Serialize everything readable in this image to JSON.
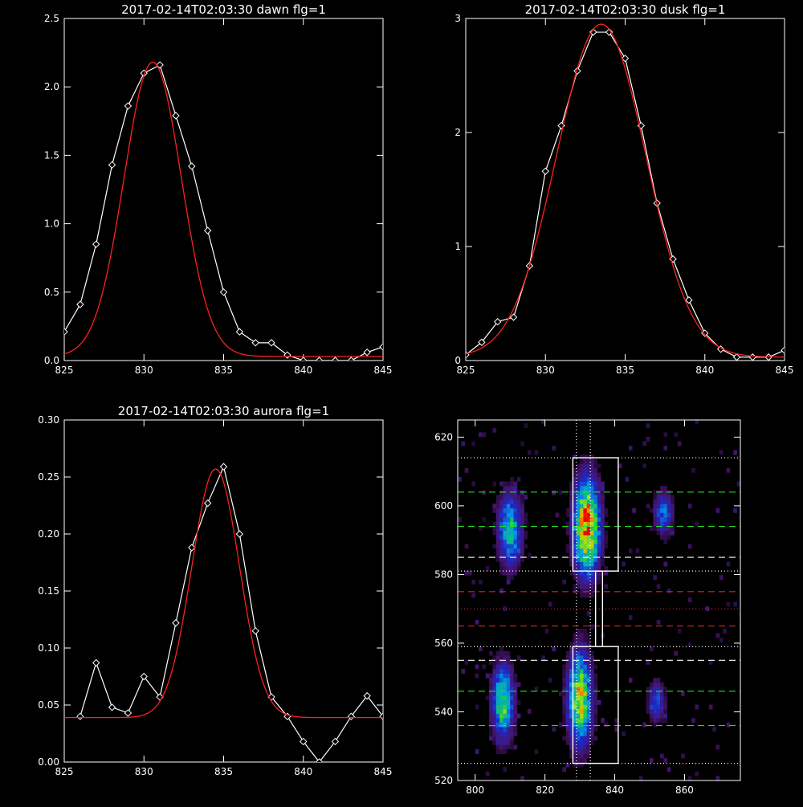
{
  "chart_data": [
    {
      "id": "dawn",
      "type": "line",
      "title": "2017-02-14T02:03:30 dawn flg=1",
      "xlim": [
        825,
        845
      ],
      "ylim": [
        0,
        2.5
      ],
      "xticks": [
        825,
        830,
        835,
        840,
        845
      ],
      "xtick_labels": [
        "825",
        "830",
        "835",
        "840",
        "845"
      ],
      "yticks": [
        0,
        0.5,
        1,
        1.5,
        2,
        2.5
      ],
      "ytick_labels": [
        "0.0",
        "0.5",
        "1.0",
        "1.5",
        "2.0",
        "2.5"
      ],
      "series": [
        {
          "kind": "data",
          "color": "#ffffff",
          "marker": "diamond",
          "x": [
            825,
            826,
            827,
            828,
            829,
            830,
            831,
            832,
            833,
            834,
            835,
            836,
            837,
            838,
            839,
            840,
            841,
            842,
            843,
            844,
            845
          ],
          "y": [
            0.21,
            0.41,
            0.85,
            1.43,
            1.86,
            2.1,
            2.16,
            1.79,
            1.42,
            0.95,
            0.5,
            0.21,
            0.13,
            0.13,
            0.04,
            0.0,
            0.0,
            0.0,
            0.0,
            0.06,
            0.1
          ]
        },
        {
          "kind": "fit",
          "color": "#ff2020",
          "shape": "gaussian",
          "amp": 2.15,
          "center": 830.55,
          "sigma": 1.8,
          "base": 0.03
        }
      ]
    },
    {
      "id": "dusk",
      "type": "line",
      "title": "2017-02-14T02:03:30 dusk flg=1",
      "xlim": [
        825,
        845
      ],
      "ylim": [
        0,
        3
      ],
      "xticks": [
        825,
        830,
        835,
        840,
        845
      ],
      "xtick_labels": [
        "825",
        "830",
        "835",
        "840",
        "845"
      ],
      "yticks": [
        0,
        1,
        2,
        3
      ],
      "ytick_labels": [
        "0",
        "1",
        "2",
        "3"
      ],
      "series": [
        {
          "kind": "data",
          "color": "#ffffff",
          "marker": "diamond",
          "x": [
            825,
            826,
            827,
            828,
            829,
            830,
            831,
            832,
            833,
            834,
            835,
            836,
            837,
            838,
            839,
            840,
            841,
            842,
            843,
            844,
            845
          ],
          "y": [
            0.05,
            0.16,
            0.34,
            0.38,
            0.83,
            1.66,
            2.06,
            2.54,
            2.88,
            2.88,
            2.65,
            2.06,
            1.38,
            0.89,
            0.53,
            0.24,
            0.1,
            0.03,
            0.03,
            0.03,
            0.09
          ]
        },
        {
          "kind": "fit",
          "color": "#ff2020",
          "shape": "gaussian",
          "amp": 2.92,
          "center": 833.5,
          "sigma": 2.8,
          "base": 0.03
        }
      ]
    },
    {
      "id": "aurora",
      "type": "line",
      "title": "2017-02-14T02:03:30 aurora flg=1",
      "xlim": [
        825,
        845
      ],
      "ylim": [
        0,
        0.3
      ],
      "xticks": [
        825,
        830,
        835,
        840,
        845
      ],
      "xtick_labels": [
        "825",
        "830",
        "835",
        "840",
        "845"
      ],
      "yticks": [
        0,
        0.05,
        0.1,
        0.15,
        0.2,
        0.25,
        0.3
      ],
      "ytick_labels": [
        "0.00",
        "0.05",
        "0.10",
        "0.15",
        "0.20",
        "0.25",
        "0.30"
      ],
      "series": [
        {
          "kind": "data",
          "color": "#ffffff",
          "marker": "diamond",
          "x": [
            826,
            827,
            828,
            829,
            830,
            831,
            832,
            833,
            834,
            835,
            836,
            837,
            838,
            839,
            840,
            841,
            842,
            843,
            844,
            845
          ],
          "y": [
            0.04,
            0.087,
            0.048,
            0.043,
            0.075,
            0.057,
            0.122,
            0.188,
            0.227,
            0.259,
            0.2,
            0.115,
            0.057,
            0.04,
            0.018,
            0.0,
            0.018,
            0.04,
            0.058,
            0.04
          ]
        },
        {
          "kind": "fit",
          "color": "#ff2020",
          "shape": "gaussian",
          "amp": 0.218,
          "center": 834.5,
          "sigma": 1.5,
          "base": 0.039
        }
      ]
    },
    {
      "id": "image",
      "type": "heatmap",
      "title": "",
      "xlim": [
        795,
        876
      ],
      "ylim": [
        520,
        625
      ],
      "xticks": [
        800,
        820,
        840,
        860
      ],
      "xtick_labels": [
        "800",
        "820",
        "840",
        "860"
      ],
      "yticks": [
        520,
        540,
        560,
        580,
        600,
        620
      ],
      "ytick_labels": [
        "520",
        "540",
        "560",
        "580",
        "600",
        "620"
      ],
      "colorscale": "rainbow",
      "blobs": [
        {
          "x": 810,
          "y": 593,
          "sx": 2.2,
          "sy": 7,
          "amp": 0.55
        },
        {
          "x": 832,
          "y": 594,
          "sx": 2.4,
          "sy": 9,
          "amp": 1.0
        },
        {
          "x": 854,
          "y": 598,
          "sx": 1.8,
          "sy": 4,
          "amp": 0.38
        },
        {
          "x": 808,
          "y": 543,
          "sx": 2.0,
          "sy": 7,
          "amp": 0.65
        },
        {
          "x": 830,
          "y": 544,
          "sx": 2.2,
          "sy": 9,
          "amp": 0.78
        },
        {
          "x": 852,
          "y": 543,
          "sx": 1.6,
          "sy": 4,
          "amp": 0.32
        }
      ],
      "vlines": [
        {
          "x": 829,
          "color": "#ffffff",
          "dash": "dotted"
        },
        {
          "x": 833,
          "color": "#ffffff",
          "dash": "dotted"
        }
      ],
      "hlines": [
        {
          "y": 614,
          "color": "#ffffff",
          "dash": "dotted"
        },
        {
          "y": 604,
          "color": "#22dd22",
          "dash": "dashed"
        },
        {
          "y": 594,
          "color": "#22dd22",
          "dash": "dashed"
        },
        {
          "y": 585,
          "color": "#ffffff",
          "dash": "dashed"
        },
        {
          "y": 581,
          "color": "#ffffff",
          "dash": "dotted"
        },
        {
          "y": 575,
          "color": "#dd2020",
          "dash": "dashed"
        },
        {
          "y": 570,
          "color": "#dd2020",
          "dash": "dotted"
        },
        {
          "y": 565,
          "color": "#dd2020",
          "dash": "dashed"
        },
        {
          "y": 559,
          "color": "#ffffff",
          "dash": "dotted"
        },
        {
          "y": 555,
          "color": "#ffffff",
          "dash": "dashed"
        },
        {
          "y": 546,
          "color": "#22dd22",
          "dash": "dashed"
        },
        {
          "y": 536,
          "color": "#22dd22",
          "dash": "dashed"
        },
        {
          "y": 525,
          "color": "#ffffff",
          "dash": "dotted"
        }
      ],
      "boxes": [
        {
          "x0": 828,
          "x1": 841,
          "y0": 581,
          "y1": 614
        },
        {
          "x0": 828,
          "x1": 841,
          "y0": 525,
          "y1": 559
        },
        {
          "x0": 834.5,
          "x1": 836.5,
          "y0": 559,
          "y1": 581
        }
      ]
    }
  ]
}
